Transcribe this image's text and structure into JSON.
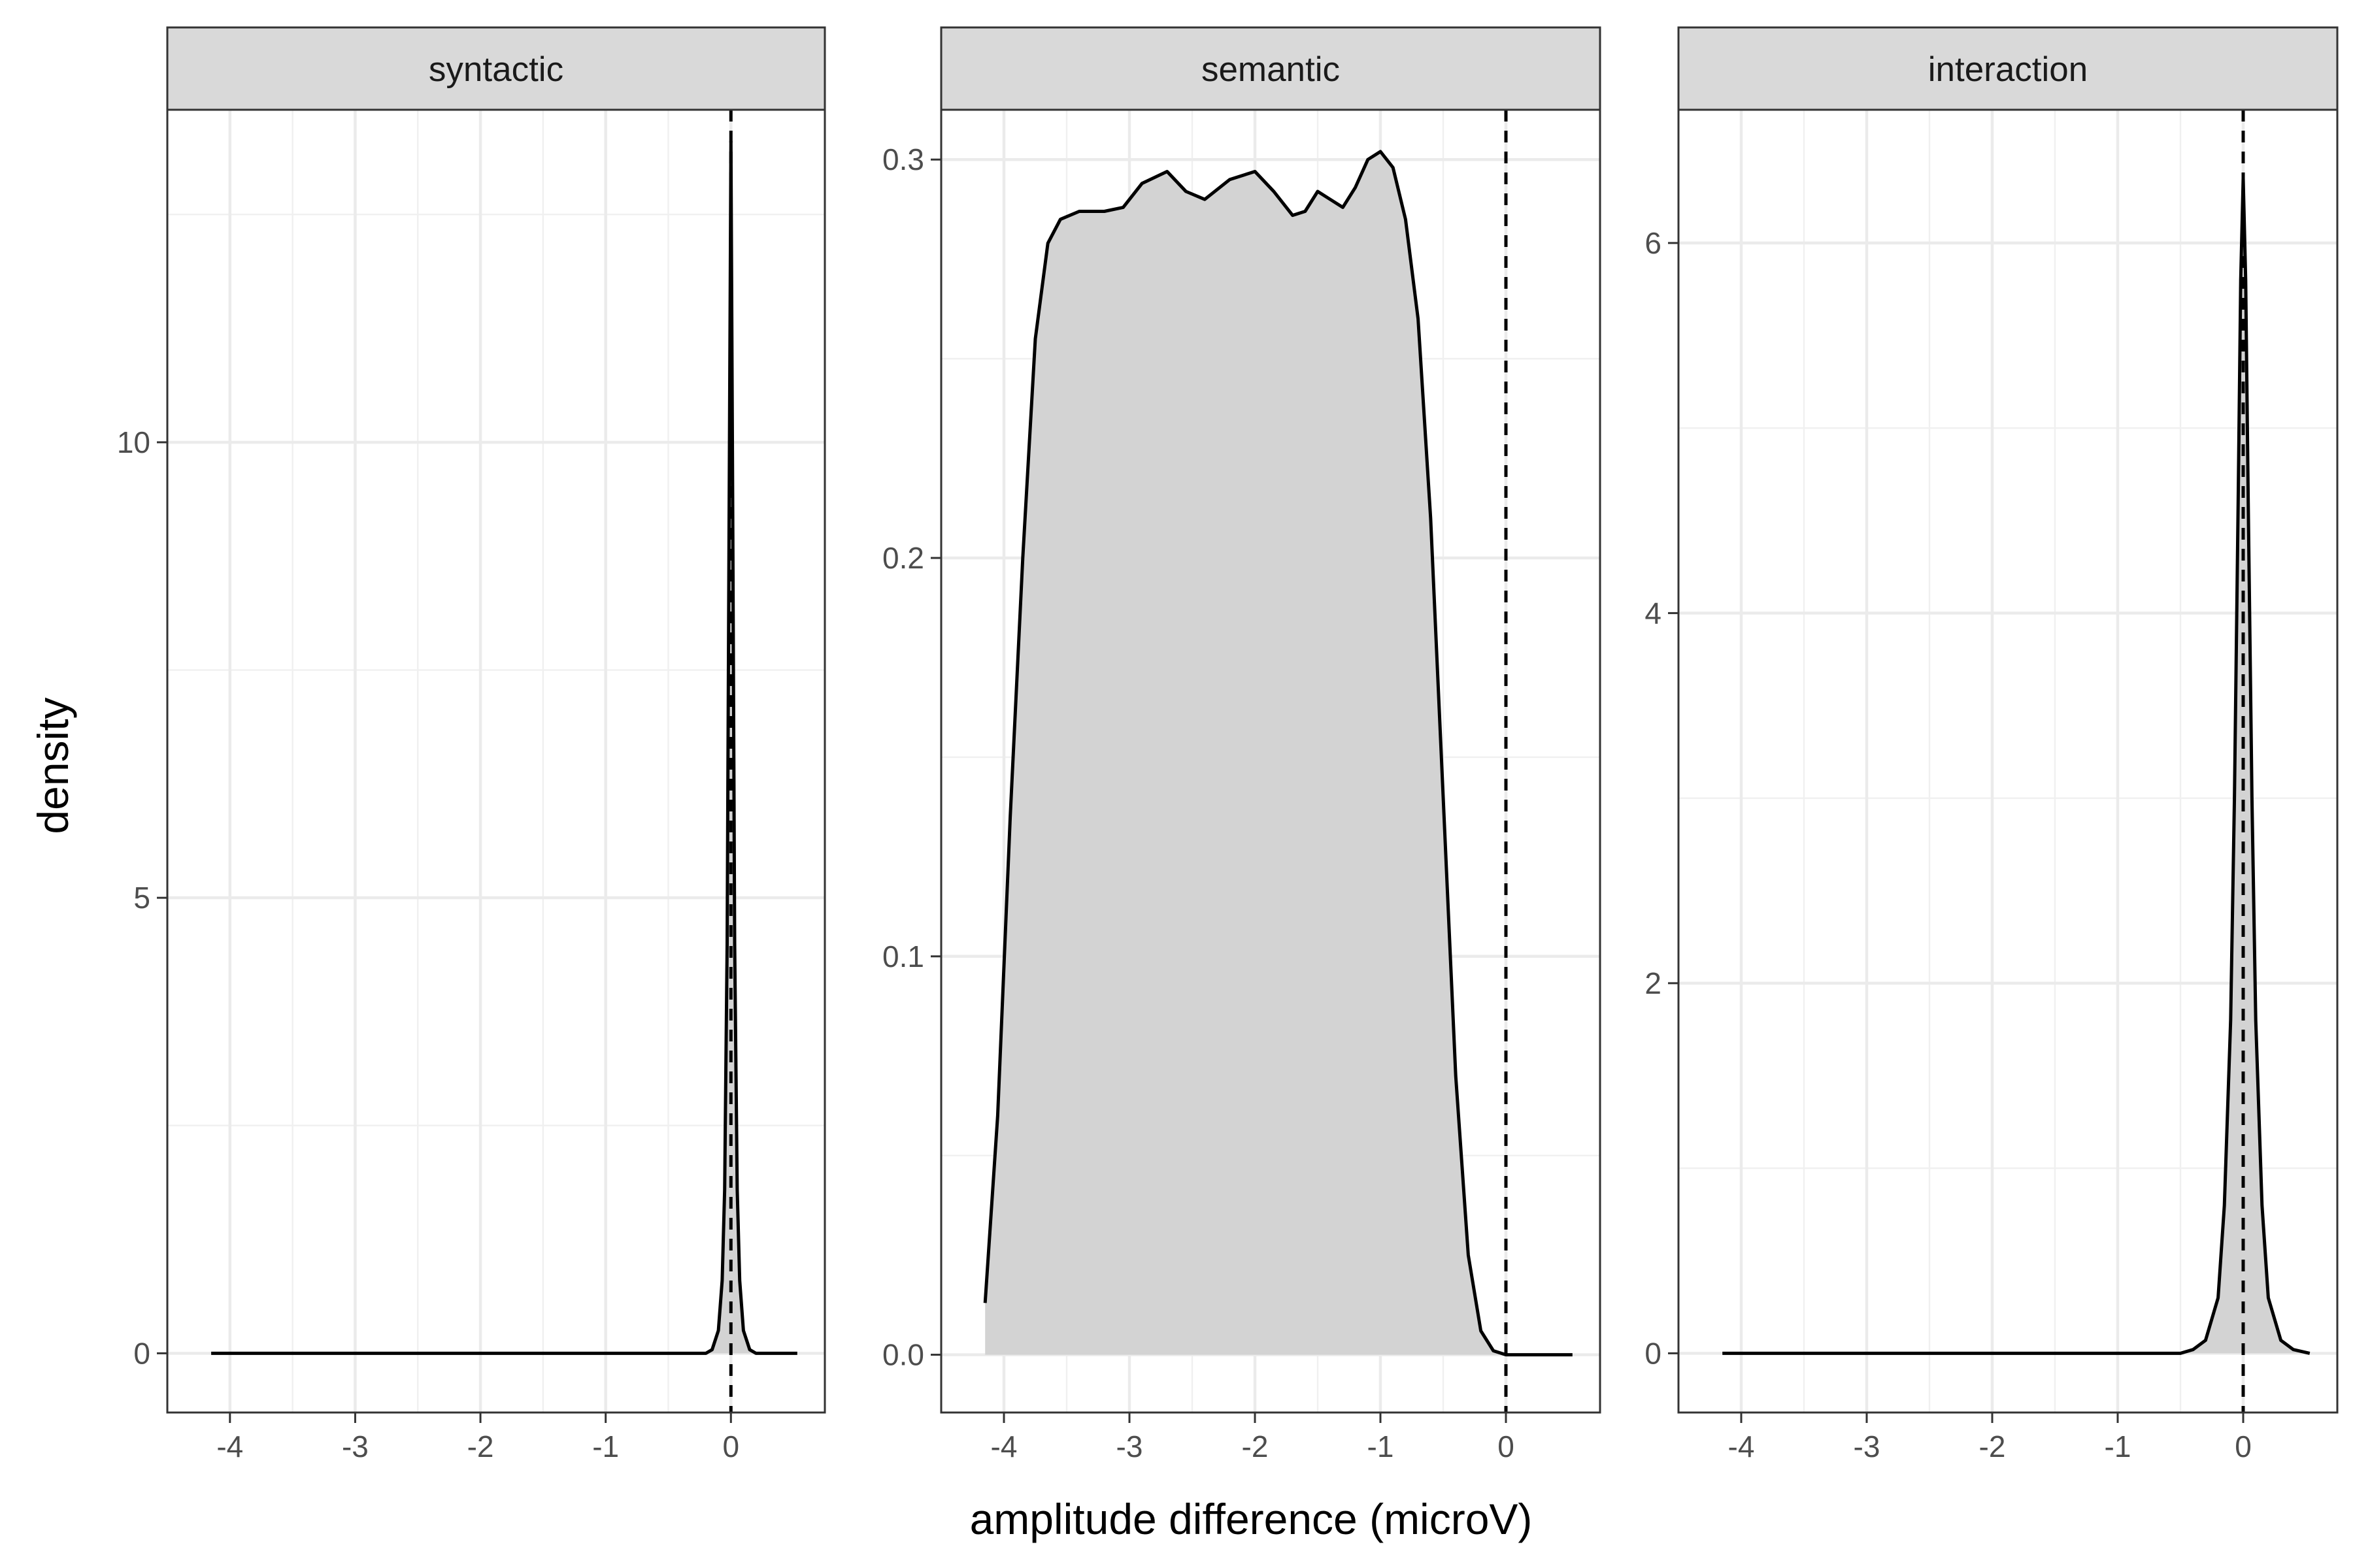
{
  "chart_data": {
    "type": "area",
    "xlabel": "amplitude difference (microV)",
    "ylabel": "density",
    "x_ticks": [
      -4,
      -3,
      -2,
      -1,
      0
    ],
    "reference_line_x": 0,
    "fill_color": "#d3d3d3",
    "line_color": "#000000",
    "grid": true,
    "panels": [
      {
        "facet": "syntactic",
        "xlim": [
          -4.5,
          0.75
        ],
        "ylim": [
          -0.65,
          13.65
        ],
        "y_ticks": [
          0,
          5,
          10
        ],
        "density": [
          {
            "x": -4.15,
            "y": 0
          },
          {
            "x": -1.0,
            "y": 0
          },
          {
            "x": -0.2,
            "y": 0
          },
          {
            "x": -0.15,
            "y": 0.04
          },
          {
            "x": -0.1,
            "y": 0.25
          },
          {
            "x": -0.07,
            "y": 0.8
          },
          {
            "x": -0.05,
            "y": 1.8
          },
          {
            "x": -0.03,
            "y": 4.5
          },
          {
            "x": -0.015,
            "y": 9.0
          },
          {
            "x": 0.0,
            "y": 13.3
          },
          {
            "x": 0.015,
            "y": 9.0
          },
          {
            "x": 0.03,
            "y": 4.5
          },
          {
            "x": 0.05,
            "y": 1.8
          },
          {
            "x": 0.07,
            "y": 0.8
          },
          {
            "x": 0.1,
            "y": 0.25
          },
          {
            "x": 0.15,
            "y": 0.04
          },
          {
            "x": 0.2,
            "y": 0
          },
          {
            "x": 0.53,
            "y": 0
          }
        ]
      },
      {
        "facet": "semantic",
        "xlim": [
          -4.5,
          0.75
        ],
        "ylim": [
          -0.0145,
          0.3125
        ],
        "y_ticks": [
          0.0,
          0.1,
          0.2,
          0.3
        ],
        "y_tick_labels": [
          "0.0",
          "0.1",
          "0.2",
          "0.3"
        ],
        "density": [
          {
            "x": -4.15,
            "y": 0.013
          },
          {
            "x": -4.05,
            "y": 0.06
          },
          {
            "x": -3.95,
            "y": 0.135
          },
          {
            "x": -3.85,
            "y": 0.2
          },
          {
            "x": -3.75,
            "y": 0.255
          },
          {
            "x": -3.65,
            "y": 0.279
          },
          {
            "x": -3.55,
            "y": 0.285
          },
          {
            "x": -3.4,
            "y": 0.287
          },
          {
            "x": -3.2,
            "y": 0.287
          },
          {
            "x": -3.05,
            "y": 0.288
          },
          {
            "x": -2.9,
            "y": 0.294
          },
          {
            "x": -2.7,
            "y": 0.297
          },
          {
            "x": -2.55,
            "y": 0.292
          },
          {
            "x": -2.4,
            "y": 0.29
          },
          {
            "x": -2.2,
            "y": 0.295
          },
          {
            "x": -2.0,
            "y": 0.297
          },
          {
            "x": -1.85,
            "y": 0.292
          },
          {
            "x": -1.7,
            "y": 0.286
          },
          {
            "x": -1.6,
            "y": 0.287
          },
          {
            "x": -1.5,
            "y": 0.292
          },
          {
            "x": -1.4,
            "y": 0.29
          },
          {
            "x": -1.3,
            "y": 0.288
          },
          {
            "x": -1.2,
            "y": 0.293
          },
          {
            "x": -1.1,
            "y": 0.3
          },
          {
            "x": -1.0,
            "y": 0.302
          },
          {
            "x": -0.9,
            "y": 0.298
          },
          {
            "x": -0.8,
            "y": 0.285
          },
          {
            "x": -0.7,
            "y": 0.26
          },
          {
            "x": -0.6,
            "y": 0.21
          },
          {
            "x": -0.5,
            "y": 0.14
          },
          {
            "x": -0.4,
            "y": 0.07
          },
          {
            "x": -0.3,
            "y": 0.025
          },
          {
            "x": -0.2,
            "y": 0.006
          },
          {
            "x": -0.1,
            "y": 0.001
          },
          {
            "x": 0.0,
            "y": 0
          },
          {
            "x": 0.53,
            "y": 0
          }
        ]
      },
      {
        "facet": "interaction",
        "xlim": [
          -4.5,
          0.75
        ],
        "ylim": [
          -0.32,
          6.72
        ],
        "y_ticks": [
          0,
          2,
          4,
          6
        ],
        "density": [
          {
            "x": -4.15,
            "y": 0
          },
          {
            "x": -1.0,
            "y": 0
          },
          {
            "x": -0.5,
            "y": 0
          },
          {
            "x": -0.4,
            "y": 0.02
          },
          {
            "x": -0.3,
            "y": 0.07
          },
          {
            "x": -0.2,
            "y": 0.3
          },
          {
            "x": -0.15,
            "y": 0.8
          },
          {
            "x": -0.1,
            "y": 1.8
          },
          {
            "x": -0.07,
            "y": 3.0
          },
          {
            "x": -0.04,
            "y": 4.6
          },
          {
            "x": -0.02,
            "y": 5.8
          },
          {
            "x": 0.0,
            "y": 6.35
          },
          {
            "x": 0.02,
            "y": 5.8
          },
          {
            "x": 0.04,
            "y": 4.6
          },
          {
            "x": 0.07,
            "y": 3.0
          },
          {
            "x": 0.1,
            "y": 1.8
          },
          {
            "x": 0.15,
            "y": 0.8
          },
          {
            "x": 0.2,
            "y": 0.3
          },
          {
            "x": 0.3,
            "y": 0.07
          },
          {
            "x": 0.4,
            "y": 0.02
          },
          {
            "x": 0.53,
            "y": 0
          }
        ]
      }
    ]
  }
}
